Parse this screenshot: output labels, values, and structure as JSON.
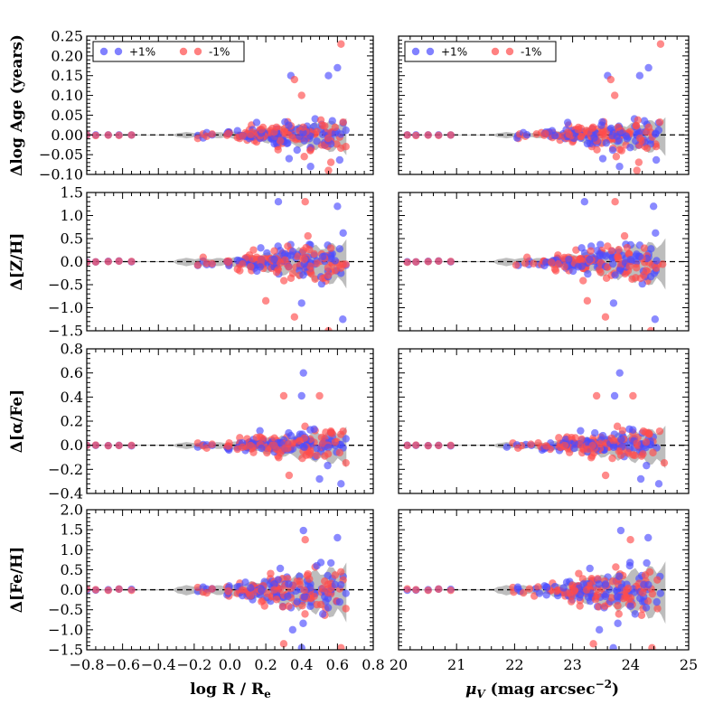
{
  "chart_data": {
    "type": "scatter",
    "description_series": [
      {
        "name": "+1%",
        "color": "#4b4bff"
      },
      {
        "name": "-1%",
        "color": "#ff4b4b"
      }
    ],
    "band_color": "#bdbdbd",
    "xaxes": [
      {
        "label": "log R / R",
        "label_sub": "e",
        "xlim": [
          -0.8,
          0.8
        ],
        "ticks": [
          -0.8,
          -0.6,
          -0.4,
          -0.2,
          0.0,
          0.2,
          0.4,
          0.6,
          0.8
        ],
        "tick_labels": [
          "−0.8",
          "−0.6",
          "−0.4",
          "−0.2",
          "0.0",
          "0.2",
          "0.4",
          "0.6",
          "0.8"
        ]
      },
      {
        "label_prefix": "μ",
        "label_sub": "V",
        "label_rest": " (mag arcsec",
        "label_sup": "−2",
        "label_end": ")",
        "xlim": [
          20,
          25
        ],
        "ticks": [
          20,
          21,
          22,
          23,
          24,
          25
        ],
        "tick_labels": [
          "20",
          "21",
          "22",
          "23",
          "24",
          "25"
        ]
      }
    ],
    "rows": [
      {
        "ylabel": "Δlog Age (years)",
        "ylim": [
          -0.1,
          0.25
        ],
        "ticks": [
          -0.1,
          -0.05,
          0.0,
          0.05,
          0.1,
          0.15,
          0.2,
          0.25
        ],
        "tick_labels": [
          "−0.10",
          "−0.05",
          "0.00",
          "0.05",
          "0.10",
          "0.15",
          "0.20",
          "0.25"
        ],
        "noise": 0.022,
        "outliers": [
          {
            "x": 0.34,
            "y": 0.15
          },
          {
            "x": 0.36,
            "y": 0.14
          },
          {
            "x": 0.55,
            "y": 0.15
          },
          {
            "x": 0.62,
            "y": 0.23
          },
          {
            "x": 0.6,
            "y": 0.17
          },
          {
            "x": 0.4,
            "y": 0.1
          },
          {
            "x": 0.45,
            "y": -0.08
          },
          {
            "x": 0.55,
            "y": -0.09
          },
          {
            "x": 0.33,
            "y": -0.06
          }
        ]
      },
      {
        "ylabel": "Δ[Z/H]",
        "ylim": [
          -1.5,
          1.5
        ],
        "ticks": [
          -1.5,
          -1.0,
          -0.5,
          0.0,
          0.5,
          1.0,
          1.5
        ],
        "tick_labels": [
          "−1.5",
          "−1.0",
          "−0.5",
          "0.0",
          "0.5",
          "1.0",
          "1.5"
        ],
        "noise": 0.25,
        "outliers": [
          {
            "x": 0.27,
            "y": 1.3
          },
          {
            "x": 0.42,
            "y": 1.3
          },
          {
            "x": 0.6,
            "y": 1.2
          },
          {
            "x": 0.2,
            "y": -0.85
          },
          {
            "x": 0.4,
            "y": -0.9
          },
          {
            "x": 0.55,
            "y": -1.5
          },
          {
            "x": 0.63,
            "y": -1.25
          },
          {
            "x": 0.36,
            "y": -1.2
          }
        ]
      },
      {
        "ylabel": "Δ[α/Fe]",
        "ylim": [
          -0.4,
          0.8
        ],
        "ticks": [
          -0.4,
          -0.2,
          0.0,
          0.2,
          0.4,
          0.6,
          0.8
        ],
        "tick_labels": [
          "−0.4",
          "−0.2",
          "0.0",
          "0.2",
          "0.4",
          "0.6",
          "0.8"
        ],
        "noise": 0.08,
        "outliers": [
          {
            "x": 0.41,
            "y": 0.6
          },
          {
            "x": 0.3,
            "y": 0.41
          },
          {
            "x": 0.4,
            "y": 0.41
          },
          {
            "x": 0.5,
            "y": 0.41
          },
          {
            "x": 0.62,
            "y": -0.32
          },
          {
            "x": 0.33,
            "y": -0.25
          },
          {
            "x": 0.5,
            "y": -0.28
          }
        ]
      },
      {
        "ylabel": "Δ[Fe/H]",
        "ylim": [
          -1.5,
          2.0
        ],
        "ticks": [
          -1.5,
          -1.0,
          -0.5,
          0.0,
          0.5,
          1.0,
          1.5,
          2.0
        ],
        "tick_labels": [
          "−1.5",
          "−1.0",
          "−0.5",
          "0.0",
          "0.5",
          "1.0",
          "1.5",
          "2.0"
        ],
        "noise": 0.35,
        "outliers": [
          {
            "x": 0.41,
            "y": 1.48
          },
          {
            "x": 0.42,
            "y": 1.25
          },
          {
            "x": 0.6,
            "y": 1.3
          },
          {
            "x": 0.3,
            "y": -1.35
          },
          {
            "x": 0.4,
            "y": -1.45
          },
          {
            "x": 0.62,
            "y": -1.45
          },
          {
            "x": 0.35,
            "y": -1.0
          }
        ]
      }
    ],
    "legend": {
      "entries": [
        "+1%",
        "-1%"
      ],
      "placement": "top-left"
    },
    "reference_line": {
      "y": 0,
      "style": "dashed",
      "color": "#000000"
    }
  }
}
